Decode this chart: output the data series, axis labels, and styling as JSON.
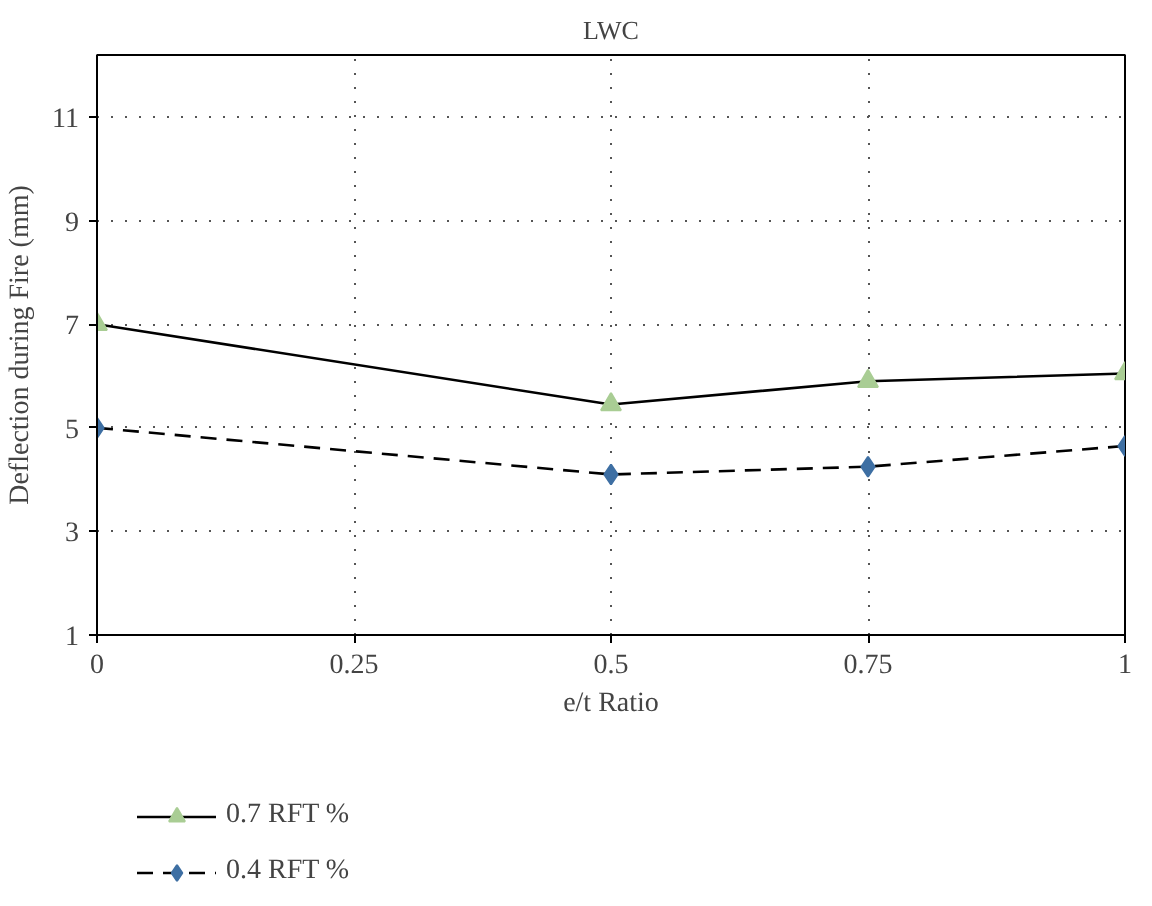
{
  "chart_data": {
    "type": "line",
    "title": "LWC",
    "xlabel": "e/t Ratio",
    "ylabel": "Deflection during Fire (mm)",
    "x": [
      0,
      0.5,
      0.75,
      1
    ],
    "series": [
      {
        "name": "0.7 RFT %",
        "color": "#a9cd94",
        "values": [
          7.0,
          5.45,
          5.9,
          6.05
        ],
        "marker": "triangle",
        "line_style": "solid"
      },
      {
        "name": "0.4 RFT %",
        "color": "#3e6fa3",
        "values": [
          5.0,
          4.1,
          4.25,
          4.65
        ],
        "marker": "diamond",
        "line_style": "dashed"
      }
    ],
    "xlim": [
      0,
      1
    ],
    "xticks": [
      0,
      0.25,
      0.5,
      0.75,
      1
    ],
    "ylim": [
      1,
      12.2
    ],
    "yticks": [
      1,
      3,
      5,
      7,
      9,
      11
    ],
    "grid": true,
    "legend": "bottom"
  }
}
